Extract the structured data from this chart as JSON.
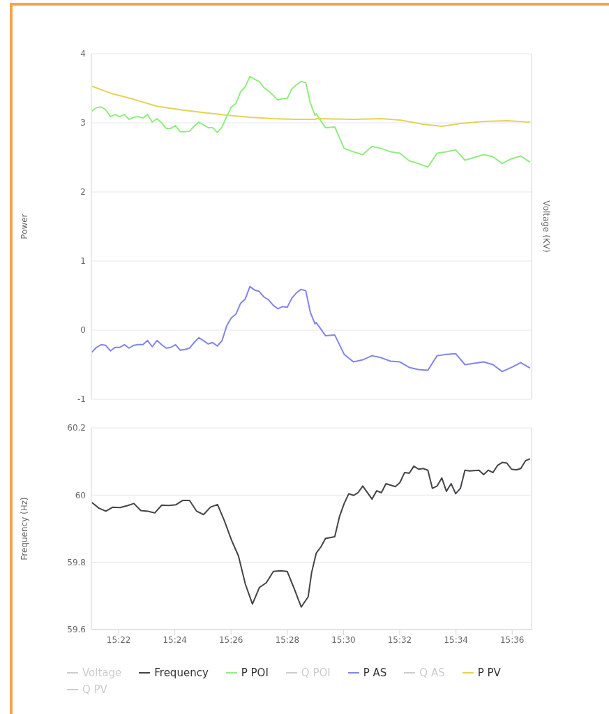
{
  "chart_data": [
    {
      "type": "line",
      "ylabel": "Power",
      "y2label": "Voltage (KV)",
      "xlim": [
        15.3505,
        15.6115
      ],
      "ylim": [
        -1,
        4
      ],
      "yticks": [
        -1,
        0,
        1,
        2,
        3,
        4
      ],
      "grid": "y",
      "legend": "bottom",
      "tick_labels": "y",
      "x": [
        15.3508,
        15.3535,
        15.3563,
        15.359,
        15.3618,
        15.3645,
        15.3673,
        15.3701,
        15.3728,
        15.3756,
        15.3783,
        15.3811,
        15.3838,
        15.3866,
        15.3894,
        15.3921,
        15.3949,
        15.3976,
        15.4004,
        15.4031,
        15.4059,
        15.4087,
        15.4114,
        15.4142,
        15.4169,
        15.4197,
        15.4224,
        15.4252,
        15.428,
        15.4307,
        15.4335,
        15.4362,
        15.439,
        15.4417,
        15.4445,
        15.4473,
        15.45,
        15.4528,
        15.4555,
        15.4583,
        15.461,
        15.4638,
        15.4666,
        15.4693,
        15.4721,
        15.4748,
        15.4776,
        15.4803,
        15.4831,
        15.4838,
        15.4893,
        15.4948,
        15.5004,
        15.5059,
        15.5114,
        15.5169,
        15.5224,
        15.5279,
        15.5334,
        15.539,
        15.5445,
        15.55,
        15.5555,
        15.561,
        15.5665,
        15.572,
        15.5776,
        15.5831,
        15.5886,
        15.5941,
        15.5996,
        15.6051,
        15.6106
      ],
      "series": [
        {
          "name": "Voltage",
          "color": "#cccccc",
          "values": [
            null,
            null,
            null,
            null,
            null,
            null,
            null,
            null,
            null,
            null,
            null,
            null,
            null,
            null,
            null,
            null,
            null,
            null,
            null,
            null,
            null,
            null,
            null,
            null,
            null,
            null,
            null,
            null,
            null,
            null,
            null,
            null,
            null,
            null,
            null,
            null,
            null,
            null,
            null,
            null,
            null,
            null,
            null,
            null,
            null,
            null,
            null,
            null,
            null,
            null,
            null,
            null,
            null,
            null,
            null,
            null,
            null,
            null,
            null,
            null,
            null,
            null,
            null,
            null,
            null,
            null,
            null,
            null,
            null,
            null,
            null,
            null,
            null
          ]
        },
        {
          "name": "P POI",
          "color": "#90ed7d",
          "values": [
            3.17,
            3.22,
            3.23,
            3.19,
            3.09,
            3.12,
            3.09,
            3.12,
            3.05,
            3.08,
            3.09,
            3.07,
            3.12,
            3.01,
            3.06,
            3.0,
            2.92,
            2.92,
            2.96,
            2.87,
            2.87,
            2.88,
            2.95,
            3.01,
            2.97,
            2.93,
            2.93,
            2.86,
            2.94,
            3.09,
            3.23,
            3.28,
            3.45,
            3.52,
            3.67,
            3.63,
            3.6,
            3.51,
            3.46,
            3.4,
            3.33,
            3.35,
            3.35,
            3.49,
            3.55,
            3.6,
            3.58,
            3.29,
            3.11,
            3.13,
            2.93,
            2.94,
            2.63,
            2.58,
            2.54,
            2.66,
            2.63,
            2.58,
            2.56,
            2.45,
            2.41,
            2.36,
            2.56,
            2.58,
            2.61,
            2.46,
            2.5,
            2.54,
            2.51,
            2.41,
            2.48,
            2.52,
            2.43
          ]
        },
        {
          "name": "Q POI",
          "color": "#cccccc",
          "values": [
            null,
            null,
            null,
            null,
            null,
            null,
            null,
            null,
            null,
            null,
            null,
            null,
            null,
            null,
            null,
            null,
            null,
            null,
            null,
            null,
            null,
            null,
            null,
            null,
            null,
            null,
            null,
            null,
            null,
            null,
            null,
            null,
            null,
            null,
            null,
            null,
            null,
            null,
            null,
            null,
            null,
            null,
            null,
            null,
            null,
            null,
            null,
            null,
            null,
            null,
            null,
            null,
            null,
            null,
            null,
            null,
            null,
            null,
            null,
            null,
            null,
            null,
            null,
            null,
            null,
            null,
            null,
            null,
            null,
            null,
            null,
            null,
            null
          ]
        },
        {
          "name": "P AS",
          "color": "#8085e9",
          "values": [
            -0.32,
            -0.25,
            -0.21,
            -0.22,
            -0.3,
            -0.25,
            -0.25,
            -0.21,
            -0.26,
            -0.22,
            -0.21,
            -0.21,
            -0.15,
            -0.24,
            -0.15,
            -0.21,
            -0.26,
            -0.25,
            -0.21,
            -0.29,
            -0.28,
            -0.26,
            -0.18,
            -0.11,
            -0.15,
            -0.2,
            -0.18,
            -0.23,
            -0.15,
            0.06,
            0.18,
            0.23,
            0.39,
            0.45,
            0.63,
            0.58,
            0.56,
            0.48,
            0.44,
            0.36,
            0.31,
            0.34,
            0.33,
            0.46,
            0.54,
            0.59,
            0.57,
            0.26,
            0.09,
            0.11,
            -0.08,
            -0.07,
            -0.35,
            -0.46,
            -0.43,
            -0.37,
            -0.4,
            -0.45,
            -0.46,
            -0.54,
            -0.57,
            -0.58,
            -0.37,
            -0.35,
            -0.34,
            -0.5,
            -0.48,
            -0.46,
            -0.5,
            -0.6,
            -0.54,
            -0.47,
            -0.55
          ]
        },
        {
          "name": "Q AS",
          "color": "#cccccc",
          "values": [
            null,
            null,
            null,
            null,
            null,
            null,
            null,
            null,
            null,
            null,
            null,
            null,
            null,
            null,
            null,
            null,
            null,
            null,
            null,
            null,
            null,
            null,
            null,
            null,
            null,
            null,
            null,
            null,
            null,
            null,
            null,
            null,
            null,
            null,
            null,
            null,
            null,
            null,
            null,
            null,
            null,
            null,
            null,
            null,
            null,
            null,
            null,
            null,
            null,
            null,
            null,
            null,
            null,
            null,
            null,
            null,
            null,
            null,
            null,
            null,
            null,
            null,
            null,
            null,
            null,
            null,
            null,
            null,
            null,
            null,
            null,
            null,
            null
          ]
        },
        {
          "name": "P PV",
          "color": "#e4d354",
          "x": [
            15.3508,
            15.3618,
            15.3756,
            15.3894,
            15.4031,
            15.4169,
            15.4307,
            15.4445,
            15.4583,
            15.4721,
            15.4831,
            15.4838,
            15.5059,
            15.5224,
            15.5334,
            15.5472,
            15.5583,
            15.5693,
            15.5831,
            15.5969,
            15.6106
          ],
          "values": [
            3.53,
            3.43,
            3.34,
            3.24,
            3.19,
            3.15,
            3.11,
            3.08,
            3.06,
            3.05,
            3.05,
            3.06,
            3.05,
            3.06,
            3.04,
            2.98,
            2.95,
            2.99,
            3.02,
            3.03,
            3.01
          ]
        },
        {
          "name": "Q PV",
          "color": "#cccccc",
          "values": [
            null,
            null,
            null,
            null,
            null,
            null,
            null,
            null,
            null,
            null,
            null,
            null,
            null,
            null,
            null,
            null,
            null,
            null,
            null,
            null,
            null,
            null,
            null,
            null,
            null,
            null,
            null,
            null,
            null,
            null,
            null,
            null,
            null,
            null,
            null,
            null,
            null,
            null,
            null,
            null,
            null,
            null,
            null,
            null,
            null,
            null,
            null,
            null,
            null,
            null,
            null,
            null,
            null,
            null,
            null,
            null,
            null,
            null,
            null,
            null,
            null,
            null,
            null,
            null,
            null,
            null,
            null,
            null,
            null,
            null,
            null,
            null,
            null
          ]
        }
      ]
    },
    {
      "type": "line",
      "ylabel": "Frequency (Hz)",
      "xlim": [
        15.3505,
        15.6115
      ],
      "xticks": [
        {
          "value": 15.3667,
          "label": "15:22"
        },
        {
          "value": 15.4,
          "label": "15:24"
        },
        {
          "value": 15.4333,
          "label": "15:26"
        },
        {
          "value": 15.4667,
          "label": "15:28"
        },
        {
          "value": 15.5,
          "label": "15:30"
        },
        {
          "value": 15.5333,
          "label": "15:32"
        },
        {
          "value": 15.5667,
          "label": "15:34"
        },
        {
          "value": 15.6,
          "label": "15:36"
        }
      ],
      "ylim": [
        59.6,
        60.2
      ],
      "yticks": [
        59.6,
        59.8,
        60,
        60.2
      ],
      "grid": "y",
      "legend": "bottom",
      "series": [
        {
          "name": "Frequency",
          "color": "#434348",
          "x": [
            15.3508,
            15.355,
            15.3591,
            15.3632,
            15.3674,
            15.3715,
            15.3757,
            15.3798,
            15.3839,
            15.3881,
            15.3922,
            15.3963,
            15.4005,
            15.4046,
            15.4087,
            15.4129,
            15.417,
            15.4211,
            15.4253,
            15.4294,
            15.4335,
            15.4377,
            15.4418,
            15.446,
            15.4501,
            15.4542,
            15.4584,
            15.4625,
            15.4666,
            15.4708,
            15.4749,
            15.479,
            15.4811,
            15.4838,
            15.4866,
            15.4893,
            15.4948,
            15.4976,
            15.5004,
            15.5031,
            15.5059,
            15.5086,
            15.5114,
            15.5169,
            15.5197,
            15.5224,
            15.5252,
            15.5307,
            15.5334,
            15.5362,
            15.539,
            15.5417,
            15.5445,
            15.5472,
            15.55,
            15.5527,
            15.5555,
            15.5583,
            15.561,
            15.5638,
            15.5665,
            15.5693,
            15.572,
            15.5748,
            15.5803,
            15.5831,
            15.5858,
            15.5886,
            15.5913,
            15.5941,
            15.5969,
            15.5996,
            15.6024,
            15.6051,
            15.6079,
            15.6106
          ],
          "values": [
            59.978,
            59.961,
            59.952,
            59.964,
            59.963,
            59.968,
            59.975,
            59.954,
            59.952,
            59.947,
            59.97,
            59.969,
            59.971,
            59.984,
            59.984,
            59.952,
            59.942,
            59.964,
            59.972,
            59.923,
            59.867,
            59.819,
            59.735,
            59.676,
            59.725,
            59.739,
            59.773,
            59.775,
            59.773,
            59.721,
            59.667,
            59.697,
            59.77,
            59.827,
            59.846,
            59.871,
            59.876,
            59.936,
            59.975,
            60.004,
            59.999,
            60.007,
            60.027,
            59.988,
            60.013,
            60.007,
            60.034,
            60.025,
            60.037,
            60.067,
            60.065,
            60.086,
            60.077,
            60.079,
            60.074,
            60.02,
            60.027,
            60.051,
            60.011,
            60.034,
            60.004,
            60.02,
            60.074,
            60.072,
            60.074,
            60.061,
            60.074,
            60.067,
            60.088,
            60.097,
            60.095,
            60.077,
            60.075,
            60.079,
            60.102,
            60.108
          ]
        }
      ]
    }
  ]
}
